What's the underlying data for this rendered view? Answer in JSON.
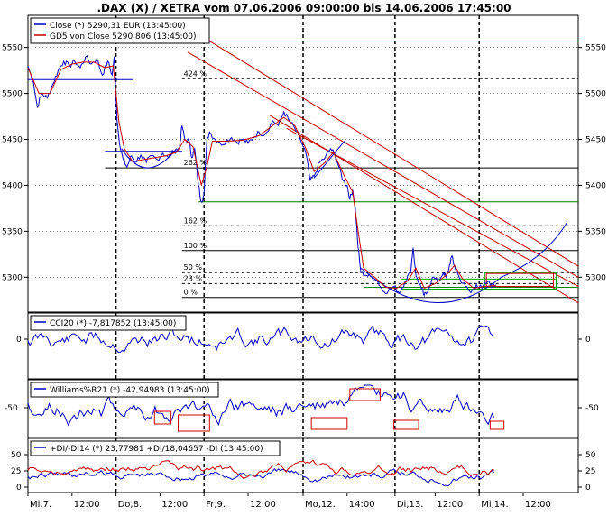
{
  "title": ".DAX (X) / XETRA vom 07.06.2006 09:00:00 bis 14.06.2006 17:45:00",
  "colors": {
    "close": "#0000c8",
    "gd5": "#c80000",
    "trend": "#c80000",
    "support": "#008000",
    "fib": "#000000",
    "box_green": "#00a000",
    "box_red": "#d00000",
    "cci": "#0000c8",
    "williams": "#0000c8",
    "di_plus": "#0000c8",
    "di_minus": "#c80000",
    "grid": "#000000"
  },
  "time_axis": {
    "labels": [
      "Mi,7.",
      "12:00",
      "Do,8.",
      "12:00",
      "Fr,9.",
      "12:00",
      "Mo,12.",
      "14:00",
      "Di,13.",
      "12:00",
      "Mi,14.",
      "12:00"
    ],
    "day_separators": [
      "Do,8.",
      "Fr,9.",
      "Mo,12.",
      "Di,13.",
      "Mi,14."
    ]
  },
  "chart_data": [
    {
      "type": "line",
      "id": "price",
      "legend": [
        "Close (*) 5290,31 EUR (13:45:00)",
        "GD5 von Close 5290,806 (13:45:00)"
      ],
      "ylim": [
        5262,
        5585
      ],
      "y_ticks": [
        5300,
        5350,
        5400,
        5450,
        5500,
        5550
      ],
      "y_tick_labels": [
        "5300",
        "5350",
        "5400",
        "5450",
        "5500",
        "5550"
      ],
      "x_domain": [
        0,
        100
      ],
      "series": [
        {
          "name": "Close (*)",
          "points": [
            [
              0,
              5530
            ],
            [
              1,
              5512
            ],
            [
              1.7,
              5485
            ],
            [
              2.5,
              5500
            ],
            [
              3.5,
              5495
            ],
            [
              4.5,
              5510
            ],
            [
              5.5,
              5525
            ],
            [
              6.5,
              5535
            ],
            [
              7.5,
              5530
            ],
            [
              8.5,
              5535
            ],
            [
              9.5,
              5528
            ],
            [
              10.5,
              5540
            ],
            [
              11.5,
              5532
            ],
            [
              12.5,
              5538
            ],
            [
              13.5,
              5520
            ],
            [
              14.5,
              5535
            ],
            [
              15.3,
              5520
            ],
            [
              15.7,
              5540
            ],
            [
              16.2,
              5470
            ],
            [
              16.8,
              5440
            ],
            [
              17.3,
              5428
            ],
            [
              18.0,
              5420
            ],
            [
              18.8,
              5432
            ],
            [
              19.5,
              5425
            ],
            [
              20.5,
              5433
            ],
            [
              21.5,
              5425
            ],
            [
              22.5,
              5432
            ],
            [
              23.5,
              5428
            ],
            [
              24.5,
              5435
            ],
            [
              25.5,
              5430
            ],
            [
              26.5,
              5437
            ],
            [
              27.5,
              5440
            ],
            [
              28.0,
              5465
            ],
            [
              28.5,
              5450
            ],
            [
              29.3,
              5448
            ],
            [
              29.8,
              5430
            ],
            [
              30.3,
              5440
            ],
            [
              31.0,
              5400
            ],
            [
              31.5,
              5382
            ],
            [
              32.0,
              5390
            ],
            [
              32.5,
              5450
            ],
            [
              33.0,
              5458
            ],
            [
              34.0,
              5450
            ],
            [
              35.0,
              5445
            ],
            [
              36.0,
              5448
            ],
            [
              37.0,
              5452
            ],
            [
              38.0,
              5447
            ],
            [
              39.0,
              5450
            ],
            [
              40.0,
              5446
            ],
            [
              41.0,
              5452
            ],
            [
              42.0,
              5458
            ],
            [
              43.0,
              5455
            ],
            [
              44.5,
              5470
            ],
            [
              45.5,
              5465
            ],
            [
              46.5,
              5480
            ],
            [
              47.5,
              5470
            ],
            [
              48.5,
              5462
            ],
            [
              49.5,
              5450
            ],
            [
              50.5,
              5435
            ],
            [
              51.3,
              5405
            ],
            [
              52.0,
              5410
            ],
            [
              53.0,
              5425
            ],
            [
              54.0,
              5430
            ],
            [
              55.0,
              5440
            ],
            [
              55.8,
              5433
            ],
            [
              56.5,
              5420
            ],
            [
              57.3,
              5405
            ],
            [
              58.0,
              5400
            ],
            [
              58.5,
              5385
            ],
            [
              59.0,
              5395
            ],
            [
              59.5,
              5375
            ],
            [
              60.0,
              5332
            ],
            [
              60.5,
              5305
            ],
            [
              61.5,
              5302
            ],
            [
              62.5,
              5300
            ],
            [
              63.5,
              5296
            ],
            [
              64.5,
              5285
            ],
            [
              65.5,
              5285
            ],
            [
              66.5,
              5290
            ],
            [
              67.5,
              5283
            ],
            [
              68.5,
              5295
            ],
            [
              69.5,
              5305
            ],
            [
              70.0,
              5332
            ],
            [
              70.5,
              5302
            ],
            [
              71.5,
              5288
            ],
            [
              72.0,
              5280
            ],
            [
              72.5,
              5283
            ],
            [
              73.5,
              5300
            ],
            [
              74.5,
              5295
            ],
            [
              75.5,
              5305
            ],
            [
              76.0,
              5300
            ],
            [
              76.5,
              5310
            ],
            [
              77.0,
              5323
            ],
            [
              77.5,
              5312
            ],
            [
              78.5,
              5298
            ],
            [
              79.5,
              5290
            ],
            [
              80.5,
              5283
            ],
            [
              81.5,
              5292
            ],
            [
              82.5,
              5288
            ],
            [
              83.5,
              5295
            ],
            [
              84.5,
              5290
            ],
            [
              85.0,
              5292
            ]
          ]
        },
        {
          "name": "GD5 von Close",
          "points": [
            [
              0,
              5528
            ],
            [
              2,
              5500
            ],
            [
              4,
              5500
            ],
            [
              6,
              5526
            ],
            [
              8,
              5532
            ],
            [
              10,
              5534
            ],
            [
              12,
              5534
            ],
            [
              14,
              5528
            ],
            [
              15.5,
              5530
            ],
            [
              16.5,
              5470
            ],
            [
              17.5,
              5440
            ],
            [
              19,
              5426
            ],
            [
              21,
              5428
            ],
            [
              23,
              5430
            ],
            [
              25,
              5432
            ],
            [
              27,
              5436
            ],
            [
              28.5,
              5450
            ],
            [
              30,
              5442
            ],
            [
              31.5,
              5400
            ],
            [
              32.5,
              5420
            ],
            [
              33.5,
              5448
            ],
            [
              36,
              5448
            ],
            [
              39,
              5449
            ],
            [
              42,
              5454
            ],
            [
              44.5,
              5465
            ],
            [
              46.5,
              5474
            ],
            [
              48.5,
              5465
            ],
            [
              50.5,
              5440
            ],
            [
              52,
              5415
            ],
            [
              54,
              5425
            ],
            [
              55.5,
              5436
            ],
            [
              57.5,
              5410
            ],
            [
              59,
              5393
            ],
            [
              60,
              5350
            ],
            [
              61,
              5310
            ],
            [
              63,
              5300
            ],
            [
              65,
              5289
            ],
            [
              67,
              5288
            ],
            [
              69,
              5296
            ],
            [
              70.5,
              5310
            ],
            [
              72,
              5288
            ],
            [
              74,
              5293
            ],
            [
              76,
              5302
            ],
            [
              77.5,
              5313
            ],
            [
              79,
              5298
            ],
            [
              81,
              5288
            ],
            [
              83,
              5290
            ],
            [
              85,
              5291
            ]
          ]
        }
      ],
      "fib_levels": [
        {
          "label": "424 %",
          "value": 5516
        },
        {
          "label": "262 %",
          "value": 5419
        },
        {
          "label": "162 %",
          "value": 5356
        },
        {
          "label": "100 %",
          "value": 5329
        },
        {
          "label": "50 %",
          "value": 5305
        },
        {
          "label": "23 %",
          "value": 5293
        },
        {
          "label": "0 %",
          "value": 5278
        }
      ]
    },
    {
      "type": "line",
      "id": "cci",
      "legend": [
        "CCI20 (*) -7,817852 (13:45:00)"
      ],
      "y_ticks": [
        0
      ],
      "y_tick_labels": [
        "0"
      ]
    },
    {
      "type": "line",
      "id": "williams",
      "legend": [
        "Williams%R21 (*) -42,94983 (13:45:00)"
      ],
      "y_ticks": [
        -50
      ],
      "y_tick_labels": [
        "-50"
      ]
    },
    {
      "type": "line",
      "id": "dmi",
      "legend": [
        "+DI/-DI14 (*) 23,77981 +DI/18,04657 -DI (13:45:00)"
      ],
      "y_ticks": [
        50,
        25,
        0
      ],
      "y_tick_labels": [
        "50",
        "25",
        "0"
      ]
    }
  ]
}
